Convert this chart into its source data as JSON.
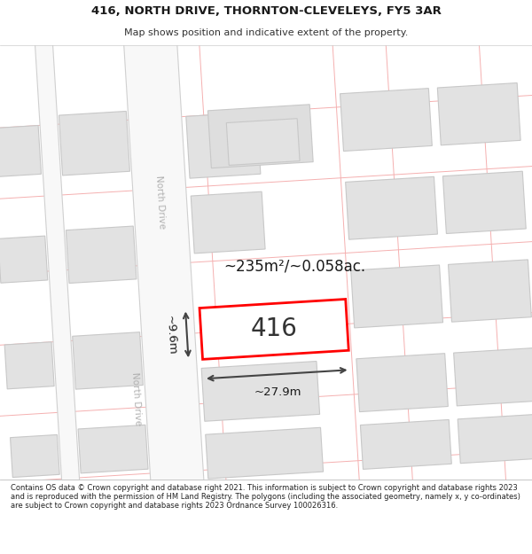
{
  "title_line1": "416, NORTH DRIVE, THORNTON-CLEVELEYS, FY5 3AR",
  "title_line2": "Map shows position and indicative extent of the property.",
  "footer": "Contains OS data © Crown copyright and database right 2021. This information is subject to Crown copyright and database rights 2023 and is reproduced with the permission of HM Land Registry. The polygons (including the associated geometry, namely x, y co-ordinates) are subject to Crown copyright and database rights 2023 Ordnance Survey 100026316.",
  "bg_color": "#ffffff",
  "grid_line_color": "#f5b0b0",
  "building_fill": "#e2e2e2",
  "building_border": "#c8c8c8",
  "highlight_fill": "#ffffff",
  "highlight_border": "#ff0000",
  "label_416": "416",
  "area_label": "~235m²/~0.058ac.",
  "width_label": "~27.9m",
  "height_label": "~9.6m",
  "street_label": "North Drive",
  "road_fill": "#f8f8f8",
  "road_border": "#d0d0d0"
}
